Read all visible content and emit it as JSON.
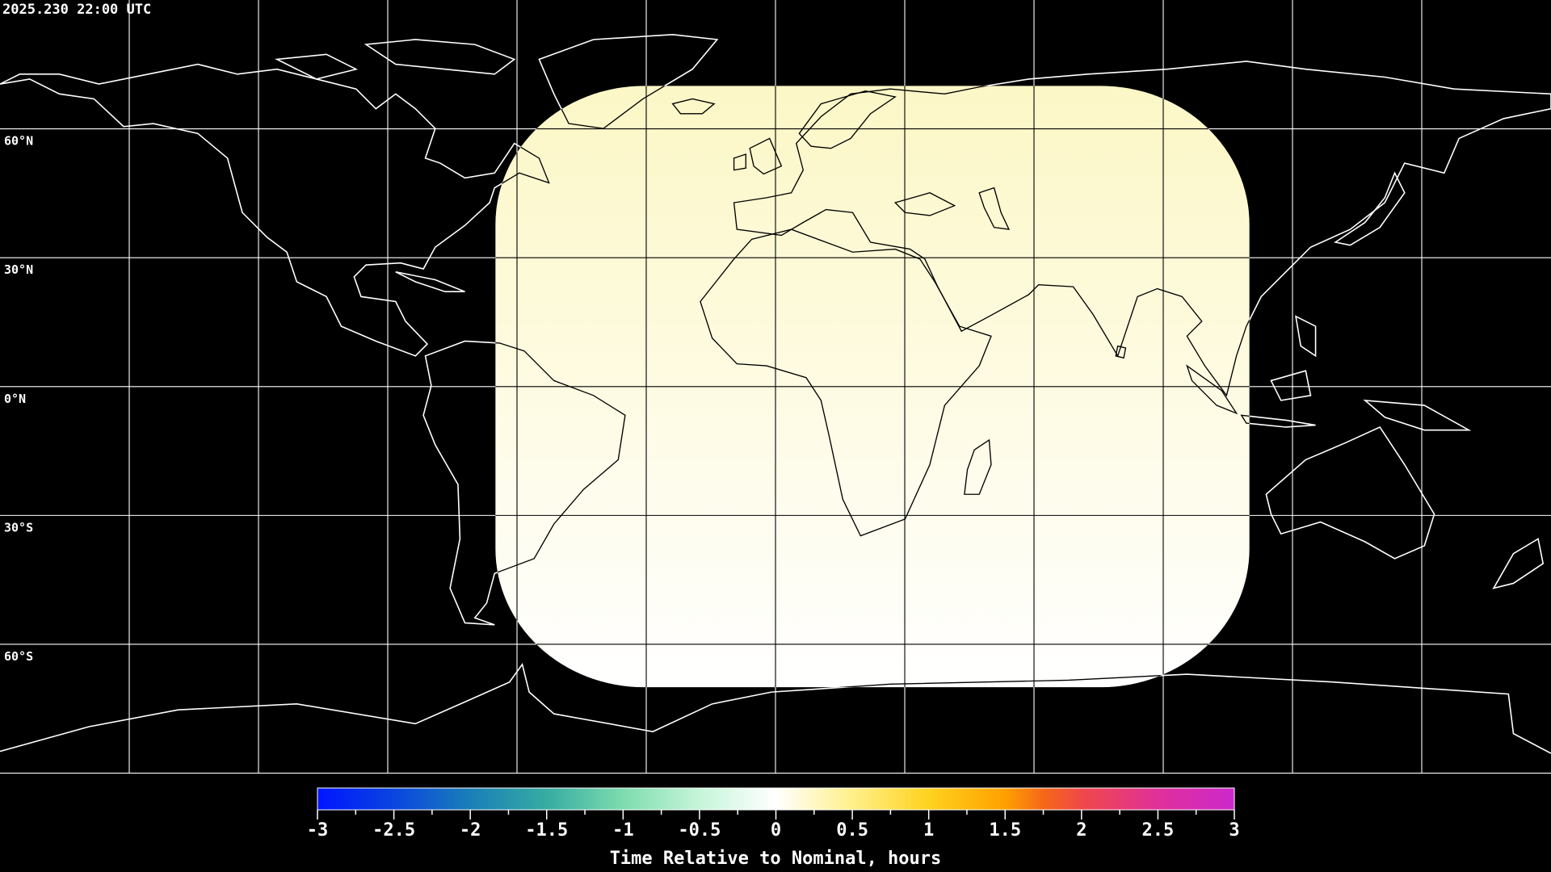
{
  "timestamp": "2025.230 22:00 UTC",
  "map": {
    "projection": "equirectangular",
    "lon_range": [
      -180,
      180
    ],
    "lat_range": [
      -90,
      90
    ],
    "grid_spacing_deg": 30,
    "lat_labels": [
      "60°N",
      "30°N",
      "0°N",
      "30°S",
      "60°S"
    ],
    "coverage": {
      "lon_range": [
        -65,
        110
      ],
      "lat_range": [
        -70,
        70
      ],
      "fill_top": "#fcf7c6",
      "fill_bottom": "#ffffff"
    },
    "coastline_color_outside": "#ffffff",
    "coastline_color_inside": "#000000",
    "background": "#000000"
  },
  "colorbar": {
    "title": "Time Relative to Nominal, hours",
    "min": -3,
    "max": 3,
    "tick_labels": [
      "-3",
      "-2.5",
      "-2",
      "-1.5",
      "-1",
      "-0.5",
      "0",
      "0.5",
      "1",
      "1.5",
      "2",
      "2.5",
      "3"
    ],
    "stops": [
      {
        "value": -3,
        "color": "#0015ff"
      },
      {
        "value": -2.5,
        "color": "#0a45e0"
      },
      {
        "value": -2,
        "color": "#1a7fb8"
      },
      {
        "value": -1.5,
        "color": "#36aca2"
      },
      {
        "value": -1,
        "color": "#7edcae"
      },
      {
        "value": -0.5,
        "color": "#c6f5da"
      },
      {
        "value": 0,
        "color": "#ffffff"
      },
      {
        "value": 0.5,
        "color": "#fff08a"
      },
      {
        "value": 1,
        "color": "#ffd21e"
      },
      {
        "value": 1.5,
        "color": "#ffa000"
      },
      {
        "value": 1.75,
        "color": "#f56818"
      },
      {
        "value": 2,
        "color": "#f04848"
      },
      {
        "value": 2.5,
        "color": "#e0309a"
      },
      {
        "value": 3,
        "color": "#cc28cc"
      }
    ]
  }
}
